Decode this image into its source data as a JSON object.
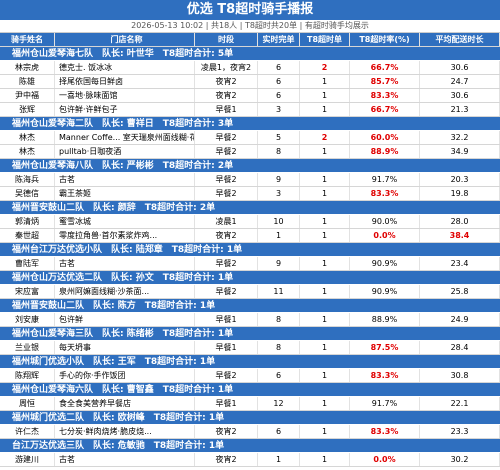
{
  "header": {
    "title": "优选 T8超时骑手播报",
    "subtitle": "2026-05-13 10:02 | 共18人 | T8超时共20单 | 有超时骑手均展示"
  },
  "table": {
    "columns": [
      "骑手姓名",
      "门店名称",
      "时段",
      "实时完单",
      "T8超时单",
      "T8超时率(%)",
      "平均配送时长"
    ],
    "highlight_color": "#e00000",
    "groups": [
      {
        "title": "福州仓山爱琴海七队　队长: 叶世华　T8超时合计: 5单",
        "riders": [
          {
            "cells": [
              "林宗虎",
              "德克士. 饭冰冰",
              "凌晨1，夜宵2",
              "6",
              "2",
              "66.7%",
              "30.6"
            ],
            "red": [
              4,
              5
            ]
          },
          {
            "cells": [
              "陈雄",
              "择尾依国每日鲜卤",
              "夜宵2",
              "6",
              "1",
              "85.7%",
              "24.7"
            ],
            "red": [
              5
            ]
          },
          {
            "cells": [
              "尹中福",
              "一喜地·脉味面馆",
              "夜宵2",
              "6",
              "1",
              "83.3%",
              "30.6"
            ],
            "red": [
              5
            ]
          },
          {
            "cells": [
              "张辉",
              "包许鲜·许鲜包子",
              "早餐1",
              "3",
              "1",
              "66.7%",
              "21.3"
            ],
            "red": [
              5
            ]
          }
        ]
      },
      {
        "title": "福州仓山爱琴海二队　队长: 曹祥日　T8超时合计: 3单",
        "riders": [
          {
            "cells": [
              "林杰",
              "Manner Coffe... 室天瑞泉州面线糊·花生汤",
              "早餐2",
              "5",
              "2",
              "60.0%",
              "32.2"
            ],
            "red": [
              4,
              5
            ]
          },
          {
            "cells": [
              "林杰",
              "pulltab·日咖夜酒",
              "早餐2",
              "8",
              "1",
              "88.9%",
              "34.9"
            ],
            "red": [
              5
            ]
          }
        ]
      },
      {
        "title": "福州仓山爱琴海八队　队长: 严彬彬　T8超时合计: 2单",
        "riders": [
          {
            "cells": [
              "陈海兵",
              "古茗",
              "早餐2",
              "9",
              "1",
              "91.7%",
              "20.3"
            ],
            "red": []
          },
          {
            "cells": [
              "吴德信",
              "霸王茶姬",
              "早餐2",
              "3",
              "1",
              "83.3%",
              "19.8"
            ],
            "red": [
              5
            ]
          }
        ]
      },
      {
        "title": "福州晋安鼓山二队　队长: 颜辞　T8超时合计: 2单",
        "riders": [
          {
            "cells": [
              "郭清炳",
              "蜜雪冰城",
              "凌晨1",
              "10",
              "1",
              "90.0%",
              "28.0"
            ],
            "red": []
          },
          {
            "cells": [
              "秦世超",
              "零度拉角兽·首尔素浆炸鸡...",
              "夜宵2",
              "1",
              "1",
              "0.0%",
              "38.4"
            ],
            "red": [
              5,
              6
            ]
          }
        ]
      },
      {
        "title": "福州台江万达优选小队　队长: 陆郑章　T8超时合计: 1单",
        "riders": [
          {
            "cells": [
              "曹陆军",
              "古茗",
              "早餐2",
              "9",
              "1",
              "90.9%",
              "23.4"
            ],
            "red": []
          }
        ]
      },
      {
        "title": "福州仓山万达优选二队　队长: 孙文　T8超时合计: 1单",
        "riders": [
          {
            "cells": [
              "宋应富",
              "泉州阿嫲面线糊·沙茶面...",
              "早餐2",
              "11",
              "1",
              "90.9%",
              "25.8"
            ],
            "red": []
          }
        ]
      },
      {
        "title": "福州晋安鼓山二队　队长: 陈方　T8超时合计: 1单",
        "riders": [
          {
            "cells": [
              "刘安康",
              "包许鲜",
              "早餐1",
              "8",
              "1",
              "88.9%",
              "24.9"
            ],
            "red": []
          }
        ]
      },
      {
        "title": "福州仓山爱琴海三队　队长: 陈绪彬　T8超时合计: 1单",
        "riders": [
          {
            "cells": [
              "兰业银",
              "每天坍事",
              "早餐1",
              "8",
              "1",
              "87.5%",
              "28.4"
            ],
            "red": [
              5
            ]
          }
        ]
      },
      {
        "title": "福州城门优选小队　队长: 王军　T8超时合计: 1单",
        "riders": [
          {
            "cells": [
              "陈翔辉",
              "手心的你·手作饭团",
              "早餐2",
              "6",
              "1",
              "83.3%",
              "30.8"
            ],
            "red": [
              5
            ]
          }
        ]
      },
      {
        "title": "福州仓山爱琴海六队　队长: 曹智鑫　T8超时合计: 1单",
        "riders": [
          {
            "cells": [
              "周恒",
              "食全食美营养早餐店",
              "早餐1",
              "12",
              "1",
              "91.7%",
              "22.1"
            ],
            "red": []
          }
        ]
      },
      {
        "title": "福州城门优选二队　队长: 欧树峰　T8超时合计: 1单",
        "riders": [
          {
            "cells": [
              "许仁杰",
              "七分炭·鲜肉烧烤·脆皮烧...",
              "夜宵2",
              "6",
              "1",
              "83.3%",
              "23.3"
            ],
            "red": [
              5
            ]
          }
        ]
      },
      {
        "title": "台江万达优选三队　队长: 危敏驰　T8超时合计: 1单",
        "riders": [
          {
            "cells": [
              "游建川",
              "古茗",
              "夜宵2",
              "1",
              "1",
              "0.0%",
              "30.2"
            ],
            "red": [
              5
            ]
          }
        ]
      }
    ]
  }
}
